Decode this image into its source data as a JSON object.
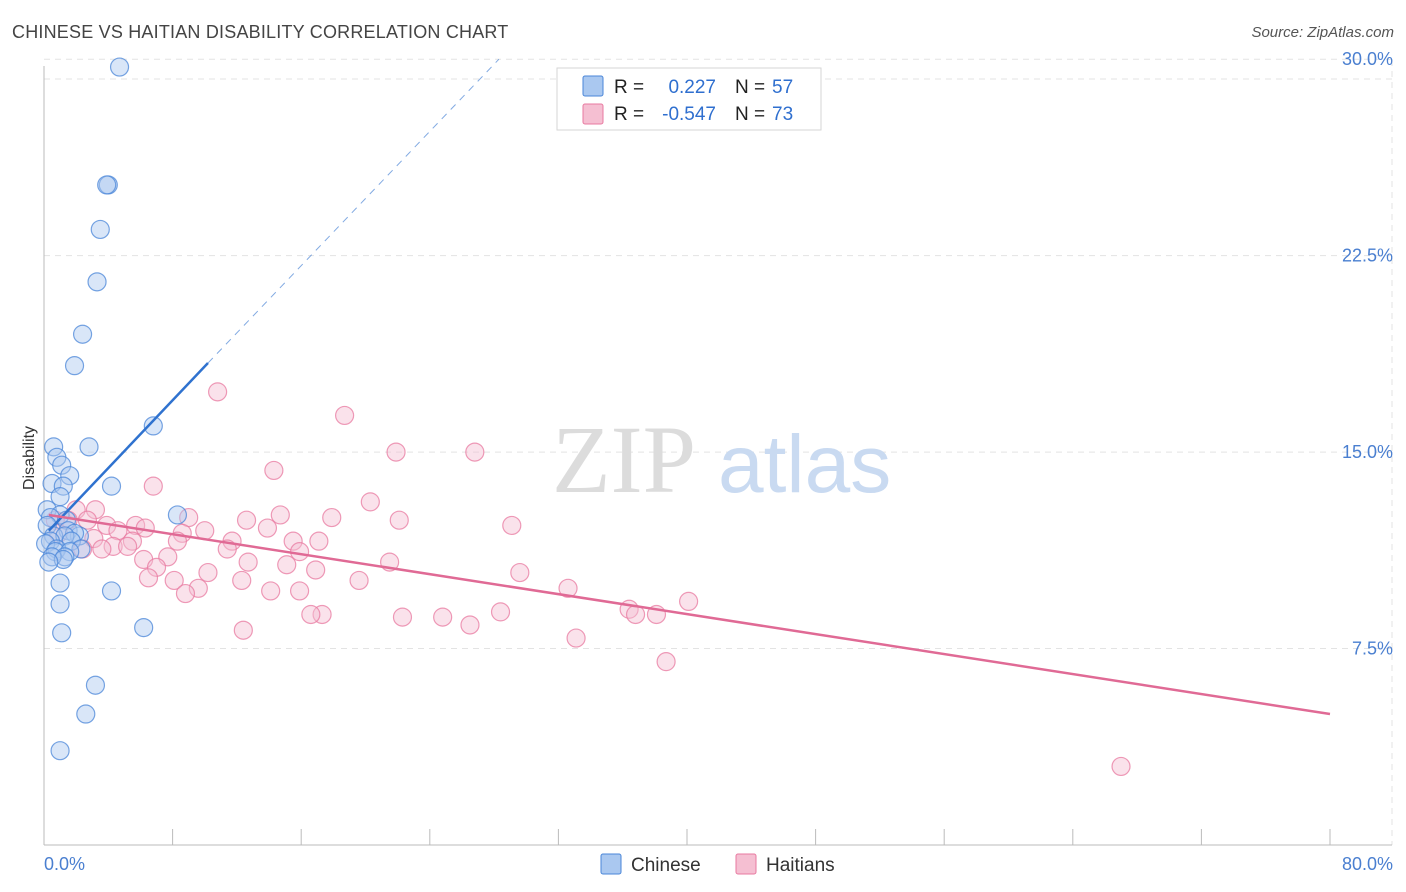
{
  "title": "CHINESE VS HAITIAN DISABILITY CORRELATION CHART",
  "source": "Source: ZipAtlas.com",
  "watermark": {
    "zip": "ZIP",
    "atlas": "atlas"
  },
  "colors": {
    "chinese": "#4a86d8",
    "chinese_fill": "#aac8f0",
    "chinese_line": "#2f72cf",
    "haitian": "#e87aa0",
    "haitian_fill": "#f5bfd2",
    "haitian_line": "#e06a95",
    "axis_text": "#4a7fd0",
    "grid": "#e3e3e3"
  },
  "stats": [
    {
      "r_label": "R =",
      "r_value": "0.227",
      "n_label": "N =",
      "n_value": "57"
    },
    {
      "r_label": "R =",
      "r_value": "-0.547",
      "n_label": "N =",
      "n_value": "73"
    }
  ],
  "chart_data": {
    "type": "scatter",
    "title": "CHINESE VS HAITIAN DISABILITY CORRELATION CHART",
    "xlabel": "",
    "ylabel": "Disability",
    "xlim": [
      0,
      80
    ],
    "ylim": [
      0,
      31
    ],
    "x_tick_labels": [
      "0.0%",
      "80.0%"
    ],
    "y_ticks": [
      7.5,
      15.0,
      22.5,
      30.0
    ],
    "y_tick_labels": [
      "7.5%",
      "15.0%",
      "22.5%",
      "30.0%"
    ],
    "grid": true,
    "legend_position": "bottom-center",
    "series": [
      {
        "name": "Chinese",
        "r": 0.227,
        "n": 57,
        "trend": {
          "x": [
            0.3,
            10.2
          ],
          "y": [
            12.0,
            18.4
          ],
          "dashed_to": [
            28.3,
            30.0
          ]
        },
        "points": [
          [
            4.7,
            29.7
          ],
          [
            4.0,
            25.2
          ],
          [
            3.9,
            25.2
          ],
          [
            3.5,
            23.5
          ],
          [
            3.3,
            21.5
          ],
          [
            2.4,
            19.5
          ],
          [
            1.9,
            18.3
          ],
          [
            6.8,
            16.0
          ],
          [
            2.8,
            15.2
          ],
          [
            0.6,
            15.2
          ],
          [
            0.8,
            14.8
          ],
          [
            1.1,
            14.5
          ],
          [
            1.6,
            14.1
          ],
          [
            0.5,
            13.8
          ],
          [
            1.2,
            13.7
          ],
          [
            4.2,
            13.7
          ],
          [
            1.0,
            13.3
          ],
          [
            0.2,
            12.8
          ],
          [
            1.0,
            12.6
          ],
          [
            0.4,
            12.5
          ],
          [
            1.4,
            12.4
          ],
          [
            8.3,
            12.6
          ],
          [
            0.2,
            12.2
          ],
          [
            1.5,
            12.0
          ],
          [
            2.2,
            11.8
          ],
          [
            1.9,
            11.9
          ],
          [
            0.6,
            11.8
          ],
          [
            1.3,
            11.8
          ],
          [
            1.7,
            11.6
          ],
          [
            0.4,
            11.6
          ],
          [
            0.1,
            11.5
          ],
          [
            0.8,
            11.3
          ],
          [
            2.3,
            11.3
          ],
          [
            0.7,
            11.2
          ],
          [
            1.6,
            11.2
          ],
          [
            1.3,
            11.0
          ],
          [
            0.5,
            11.0
          ],
          [
            1.2,
            10.9
          ],
          [
            0.3,
            10.8
          ],
          [
            1.0,
            10.0
          ],
          [
            4.2,
            9.7
          ],
          [
            1.0,
            9.2
          ],
          [
            6.2,
            8.3
          ],
          [
            1.1,
            8.1
          ],
          [
            3.2,
            6.1
          ],
          [
            2.6,
            5.0
          ],
          [
            1.0,
            3.6
          ]
        ]
      },
      {
        "name": "Haitians",
        "r": -0.547,
        "n": 73,
        "trend": {
          "x": [
            0.3,
            80.0
          ],
          "y": [
            12.6,
            5.0
          ]
        },
        "points": [
          [
            10.8,
            17.3
          ],
          [
            18.7,
            16.4
          ],
          [
            21.9,
            15.0
          ],
          [
            26.8,
            15.0
          ],
          [
            14.3,
            14.3
          ],
          [
            6.8,
            13.7
          ],
          [
            20.3,
            13.1
          ],
          [
            2.0,
            12.8
          ],
          [
            3.2,
            12.8
          ],
          [
            9.0,
            12.5
          ],
          [
            12.6,
            12.4
          ],
          [
            14.7,
            12.6
          ],
          [
            17.9,
            12.5
          ],
          [
            22.1,
            12.4
          ],
          [
            1.5,
            12.4
          ],
          [
            2.7,
            12.4
          ],
          [
            0.7,
            12.4
          ],
          [
            5.7,
            12.2
          ],
          [
            3.9,
            12.2
          ],
          [
            4.6,
            12.0
          ],
          [
            6.3,
            12.1
          ],
          [
            10.0,
            12.0
          ],
          [
            8.6,
            11.9
          ],
          [
            13.9,
            12.1
          ],
          [
            29.1,
            12.2
          ],
          [
            0.9,
            11.9
          ],
          [
            3.1,
            11.7
          ],
          [
            5.5,
            11.6
          ],
          [
            8.3,
            11.6
          ],
          [
            11.7,
            11.6
          ],
          [
            15.5,
            11.6
          ],
          [
            17.1,
            11.6
          ],
          [
            11.4,
            11.3
          ],
          [
            4.3,
            11.4
          ],
          [
            2.4,
            11.3
          ],
          [
            3.6,
            11.3
          ],
          [
            5.2,
            11.4
          ],
          [
            15.9,
            11.2
          ],
          [
            7.7,
            11.0
          ],
          [
            6.2,
            10.9
          ],
          [
            12.7,
            10.8
          ],
          [
            15.1,
            10.7
          ],
          [
            21.5,
            10.8
          ],
          [
            7.0,
            10.6
          ],
          [
            10.2,
            10.4
          ],
          [
            16.9,
            10.5
          ],
          [
            29.6,
            10.4
          ],
          [
            6.5,
            10.2
          ],
          [
            8.1,
            10.1
          ],
          [
            12.3,
            10.1
          ],
          [
            19.6,
            10.1
          ],
          [
            9.6,
            9.8
          ],
          [
            14.1,
            9.7
          ],
          [
            15.9,
            9.7
          ],
          [
            8.8,
            9.6
          ],
          [
            32.6,
            9.8
          ],
          [
            40.1,
            9.3
          ],
          [
            36.4,
            9.0
          ],
          [
            28.4,
            8.9
          ],
          [
            17.3,
            8.8
          ],
          [
            16.6,
            8.8
          ],
          [
            24.8,
            8.7
          ],
          [
            36.8,
            8.8
          ],
          [
            38.1,
            8.8
          ],
          [
            22.3,
            8.7
          ],
          [
            26.5,
            8.4
          ],
          [
            12.4,
            8.2
          ],
          [
            33.1,
            7.9
          ],
          [
            38.7,
            7.0
          ],
          [
            67.0,
            3.0
          ]
        ]
      }
    ]
  }
}
